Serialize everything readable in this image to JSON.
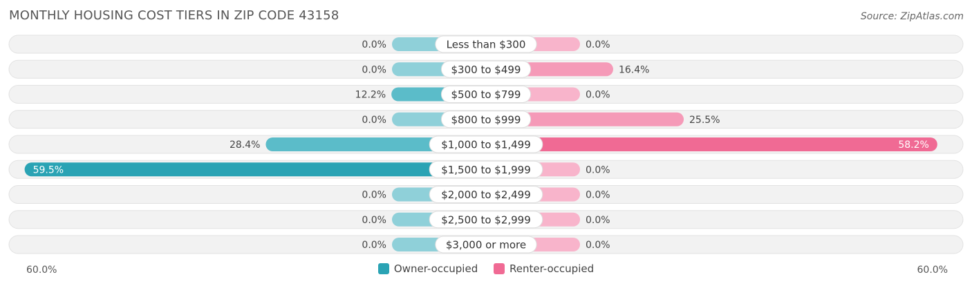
{
  "title": "MONTHLY HOUSING COST TIERS IN ZIP CODE 43158",
  "source": "Source: ZipAtlas.com",
  "colors": {
    "owner": "#5bbcc9",
    "owner_dark": "#2aa3b4",
    "renter": "#f59ab8",
    "renter_dark": "#f06a94",
    "track": "#f0f0f0"
  },
  "axis": {
    "left_label": "60.0%",
    "right_label": "60.0%"
  },
  "legend": {
    "owner": "Owner-occupied",
    "renter": "Renter-occupied"
  },
  "chart_data": {
    "type": "bar",
    "orientation": "horizontal-diverging",
    "title": "MONTHLY HOUSING COST TIERS IN ZIP CODE 43158",
    "xlim": [
      -60,
      60
    ],
    "categories": [
      "Less than $300",
      "$300 to $499",
      "$500 to $799",
      "$800 to $999",
      "$1,000 to $1,499",
      "$1,500 to $1,999",
      "$2,000 to $2,499",
      "$2,500 to $2,999",
      "$3,000 or more"
    ],
    "series": [
      {
        "name": "Owner-occupied",
        "values": [
          0.0,
          0.0,
          12.2,
          0.0,
          28.4,
          59.5,
          0.0,
          0.0,
          0.0
        ],
        "labels": [
          "0.0%",
          "0.0%",
          "12.2%",
          "0.0%",
          "28.4%",
          "59.5%",
          "0.0%",
          "0.0%",
          "0.0%"
        ]
      },
      {
        "name": "Renter-occupied",
        "values": [
          0.0,
          16.4,
          0.0,
          25.5,
          58.2,
          0.0,
          0.0,
          0.0,
          0.0
        ],
        "labels": [
          "0.0%",
          "16.4%",
          "0.0%",
          "25.5%",
          "58.2%",
          "0.0%",
          "0.0%",
          "0.0%",
          "0.0%"
        ]
      }
    ]
  }
}
